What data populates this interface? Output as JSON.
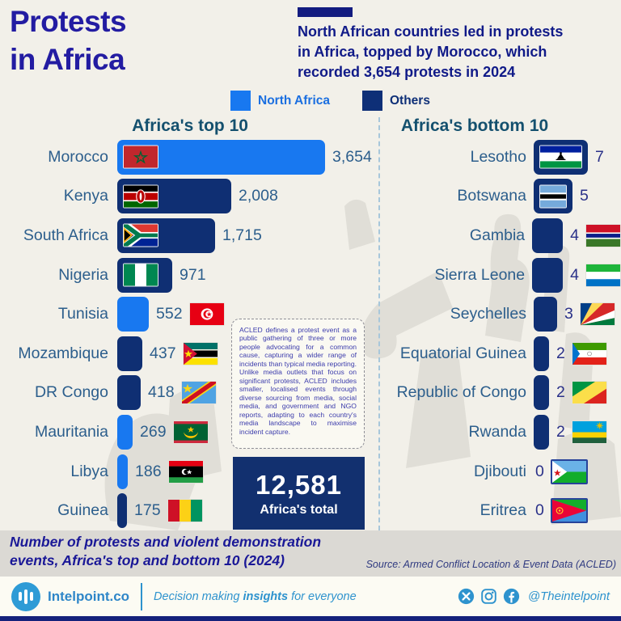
{
  "header": {
    "title_lines": [
      "Protests",
      "in Africa"
    ],
    "subtitle_lines": [
      "North African countries led in protests",
      "in Africa, topped by Morocco, which",
      "recorded 3,654 protests in 2024"
    ],
    "legend": {
      "north_africa": {
        "label": "North Africa",
        "color": "#1878F0"
      },
      "others": {
        "label": "Others",
        "color": "#0E2F77"
      }
    }
  },
  "chart_data": [
    {
      "type": "bar",
      "orientation": "horizontal",
      "title": "Africa's top 10",
      "unit": "protest and violent demonstration events (2024)",
      "categories": [
        "Morocco",
        "Kenya",
        "South Africa",
        "Nigeria",
        "Tunisia",
        "Mozambique",
        "DR Congo",
        "Mauritania",
        "Libya",
        "Guinea"
      ],
      "values": [
        3654,
        2008,
        1715,
        971,
        552,
        437,
        418,
        269,
        186,
        175
      ],
      "display_values": [
        "3,654",
        "2,008",
        "1,715",
        "971",
        "552",
        "437",
        "418",
        "269",
        "186",
        "175"
      ],
      "groups": [
        "north",
        "others",
        "others",
        "others",
        "north",
        "others",
        "others",
        "north",
        "north",
        "others"
      ],
      "flags": [
        "morocco",
        "kenya",
        "south-africa",
        "nigeria",
        "tunisia",
        "mozambique",
        "dr-congo",
        "mauritania",
        "libya",
        "guinea"
      ],
      "flag_inside": [
        true,
        true,
        true,
        true,
        false,
        false,
        false,
        false,
        false,
        false
      ]
    },
    {
      "type": "bar",
      "orientation": "horizontal",
      "title": "Africa's bottom 10",
      "unit": "protest and violent demonstration events (2024)",
      "categories": [
        "Lesotho",
        "Botswana",
        "Gambia",
        "Sierra Leone",
        "Seychelles",
        "Equatorial Guinea",
        "Republic of Congo",
        "Rwanda",
        "Djibouti",
        "Eritrea"
      ],
      "values": [
        7,
        5,
        4,
        4,
        3,
        2,
        2,
        2,
        0,
        0
      ],
      "display_values": [
        "7",
        "5",
        "4",
        "4",
        "3",
        "2",
        "2",
        "2",
        "0",
        "0"
      ],
      "groups": [
        "others",
        "others",
        "others",
        "others",
        "others",
        "others",
        "others",
        "others",
        "others",
        "others"
      ],
      "flags": [
        "lesotho",
        "botswana",
        "gambia",
        "sierra-leone",
        "seychelles",
        "equatorial-guinea",
        "republic-of-congo",
        "rwanda",
        "djibouti",
        "eritrea"
      ],
      "flag_inside": [
        true,
        true,
        false,
        false,
        false,
        false,
        false,
        false,
        false,
        false
      ]
    }
  ],
  "note_box": {
    "text": "ACLED defines a protest event as a public gathering of three or more people advocating for a common cause, capturing a wider range of incidents than typical media reporting. Unlike media outlets that focus on significant protests, ACLED includes smaller, localised events through diverse sourcing from media, social media, and government and NGO reports, adapting to each country's media landscape to maximise incident capture."
  },
  "total_box": {
    "value": "12,581",
    "label": "Africa's total"
  },
  "caption": {
    "lines": [
      "Number of protests and violent demonstration",
      "events, Africa's top and bottom 10 (2024)"
    ],
    "source": "Source: Armed Conflict Location & Event Data (ACLED)"
  },
  "footer": {
    "brand": "Intelpoint.co",
    "tagline_parts": [
      "Decision making ",
      "insights",
      " for everyone"
    ],
    "handle": "@Theintelpoint",
    "social_icons": [
      "x-icon",
      "instagram-icon",
      "facebook-icon"
    ]
  },
  "colors": {
    "background": "#F2F0E9",
    "north_africa_bar": "#1878F0",
    "others_bar": "#0F2F73",
    "title_indigo": "#231CA2",
    "subtitle_navy": "#101A88",
    "heading_teal": "#14506E",
    "label_steel_blue": "#2C5E8C",
    "bottom_value_indigo": "#2A3189",
    "note_text": "#3C3CAC",
    "caption_band": "#DBD9D4",
    "footer_blue": "#2E93CE",
    "bottom_strip": "#15217B"
  }
}
